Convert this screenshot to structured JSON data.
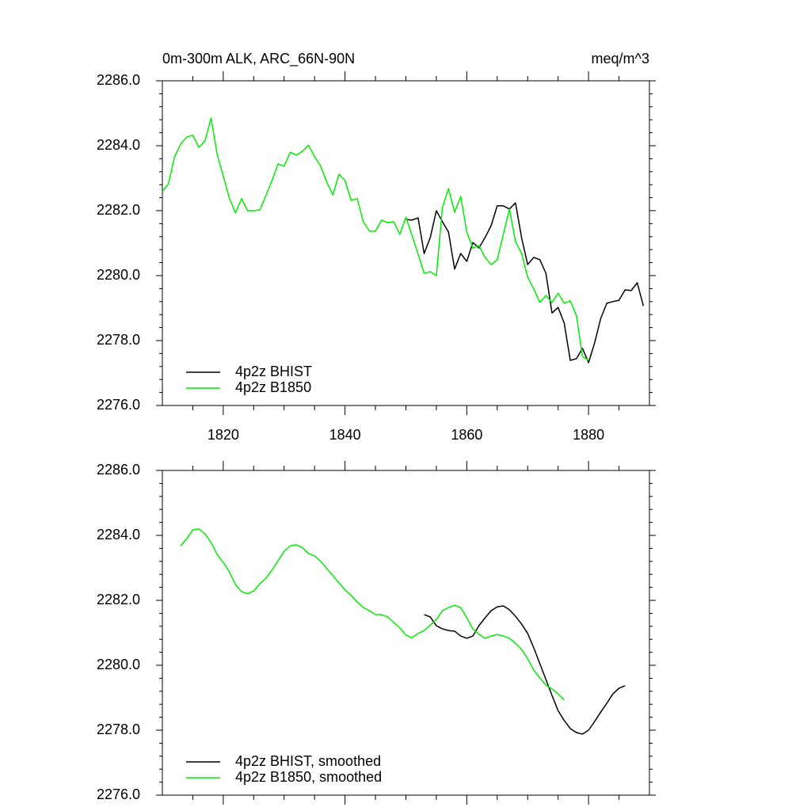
{
  "chart_data": [
    {
      "type": "line",
      "title": "0m-300m ALK, ARC_66N-90N",
      "units_label": "meq/m^3",
      "x": [
        1810,
        1811,
        1812,
        1813,
        1814,
        1815,
        1816,
        1817,
        1818,
        1819,
        1820,
        1821,
        1822,
        1823,
        1824,
        1825,
        1826,
        1827,
        1828,
        1829,
        1830,
        1831,
        1832,
        1833,
        1834,
        1835,
        1836,
        1837,
        1838,
        1839,
        1840,
        1841,
        1842,
        1843,
        1844,
        1845,
        1846,
        1847,
        1848,
        1849,
        1850,
        1851,
        1852,
        1853,
        1854,
        1855,
        1856,
        1857,
        1858,
        1859,
        1860,
        1861,
        1862,
        1863,
        1864,
        1865,
        1866,
        1867,
        1868,
        1869,
        1870,
        1871,
        1872,
        1873,
        1874,
        1875,
        1876,
        1877,
        1878,
        1879,
        1880,
        1881,
        1882,
        1883,
        1884,
        1885,
        1886,
        1887,
        1888,
        1889
      ],
      "series": [
        {
          "name": "4p2z BHIST",
          "color": "#000000",
          "values": [
            null,
            null,
            null,
            null,
            null,
            null,
            null,
            null,
            null,
            null,
            null,
            null,
            null,
            null,
            null,
            null,
            null,
            null,
            null,
            null,
            null,
            null,
            null,
            null,
            null,
            null,
            null,
            null,
            null,
            null,
            null,
            null,
            null,
            null,
            null,
            null,
            null,
            null,
            null,
            null,
            2281.73,
            2281.71,
            2281.78,
            2280.68,
            2281.17,
            2282.0,
            2281.66,
            2281.34,
            2280.2,
            2280.68,
            2280.44,
            2281.02,
            2280.85,
            2281.17,
            2281.54,
            2282.15,
            2282.15,
            2282.05,
            2282.24,
            2281.17,
            2280.34,
            2280.56,
            2280.49,
            2280.07,
            2278.85,
            2279.02,
            2278.54,
            2277.39,
            2277.44,
            2277.76,
            2277.32,
            2277.93,
            2278.68,
            2279.15,
            2279.2,
            2279.24,
            2279.56,
            2279.54,
            2279.78,
            2279.07
          ]
        },
        {
          "name": "4p2z B1850",
          "color": "#00ee00",
          "values": [
            2282.59,
            2282.83,
            2283.66,
            2284.05,
            2284.27,
            2284.32,
            2283.95,
            2284.15,
            2284.85,
            2283.73,
            2283.07,
            2282.39,
            2281.93,
            2282.37,
            2282.0,
            2282.0,
            2282.02,
            2282.46,
            2282.93,
            2283.44,
            2283.37,
            2283.8,
            2283.71,
            2283.83,
            2284.02,
            2283.66,
            2283.37,
            2282.88,
            2282.49,
            2283.12,
            2282.93,
            2282.32,
            2282.37,
            2281.66,
            2281.37,
            2281.37,
            2281.71,
            2281.63,
            2281.66,
            2281.27,
            2281.8,
            2281.24,
            2280.66,
            2280.07,
            2280.12,
            2280.0,
            2282.1,
            2282.68,
            2281.95,
            2282.44,
            2281.34,
            2280.85,
            2280.93,
            2280.56,
            2280.34,
            2280.49,
            2281.27,
            2282.05,
            2281.05,
            2280.68,
            2279.95,
            2279.59,
            2279.17,
            2279.39,
            2279.17,
            2279.46,
            2279.15,
            2279.22,
            2278.78,
            2277.51,
            2277.39,
            null,
            null,
            null,
            null,
            null,
            null,
            null,
            null,
            null
          ]
        }
      ],
      "xlim": [
        1810,
        1890
      ],
      "xticks": [
        1820,
        1840,
        1860,
        1880
      ],
      "show_xtick_labels": true,
      "ylim": [
        2276,
        2286
      ],
      "yticks": [
        {
          "value": 2276,
          "label": "2276.0"
        },
        {
          "value": 2278,
          "label": "2278.0"
        },
        {
          "value": 2280,
          "label": "2280.0"
        },
        {
          "value": 2282,
          "label": "2282.0"
        },
        {
          "value": 2284,
          "label": "2284.0"
        },
        {
          "value": 2286,
          "label": "2286.0"
        }
      ],
      "legend": "lower left"
    },
    {
      "type": "line",
      "x": [
        1810,
        1811,
        1812,
        1813,
        1814,
        1815,
        1816,
        1817,
        1818,
        1819,
        1820,
        1821,
        1822,
        1823,
        1824,
        1825,
        1826,
        1827,
        1828,
        1829,
        1830,
        1831,
        1832,
        1833,
        1834,
        1835,
        1836,
        1837,
        1838,
        1839,
        1840,
        1841,
        1842,
        1843,
        1844,
        1845,
        1846,
        1847,
        1848,
        1849,
        1850,
        1851,
        1852,
        1853,
        1854,
        1855,
        1856,
        1857,
        1858,
        1859,
        1860,
        1861,
        1862,
        1863,
        1864,
        1865,
        1866,
        1867,
        1868,
        1869,
        1870,
        1871,
        1872,
        1873,
        1874,
        1875,
        1876,
        1877,
        1878,
        1879,
        1880,
        1881,
        1882,
        1883,
        1884,
        1885,
        1886,
        1887,
        1888,
        1889
      ],
      "series": [
        {
          "name": "4p2z BHIST, smoothed",
          "color": "#000000",
          "values": [
            null,
            null,
            null,
            null,
            null,
            null,
            null,
            null,
            null,
            null,
            null,
            null,
            null,
            null,
            null,
            null,
            null,
            null,
            null,
            null,
            null,
            null,
            null,
            null,
            null,
            null,
            null,
            null,
            null,
            null,
            null,
            null,
            null,
            null,
            null,
            null,
            null,
            null,
            null,
            null,
            null,
            null,
            null,
            2281.56,
            2281.49,
            2281.22,
            2281.12,
            2281.07,
            2281.05,
            2280.9,
            2280.83,
            2280.9,
            2281.22,
            2281.46,
            2281.68,
            2281.8,
            2281.83,
            2281.71,
            2281.51,
            2281.27,
            2280.98,
            2280.54,
            2280.05,
            2279.56,
            2279.07,
            2278.6,
            2278.3,
            2278.05,
            2277.93,
            2277.88,
            2278.0,
            2278.27,
            2278.56,
            2278.83,
            2279.12,
            2279.29,
            2279.37,
            null,
            null,
            null
          ]
        },
        {
          "name": "4p2z B1850, smoothed",
          "color": "#00ee00",
          "values": [
            null,
            null,
            null,
            2283.68,
            2283.9,
            2284.17,
            2284.2,
            2284.05,
            2283.78,
            2283.41,
            2283.17,
            2282.88,
            2282.49,
            2282.27,
            2282.2,
            2282.29,
            2282.51,
            2282.68,
            2282.93,
            2283.22,
            2283.51,
            2283.68,
            2283.71,
            2283.63,
            2283.44,
            2283.37,
            2283.2,
            2282.98,
            2282.76,
            2282.54,
            2282.32,
            2282.15,
            2281.95,
            2281.78,
            2281.68,
            2281.56,
            2281.56,
            2281.49,
            2281.32,
            2281.15,
            2280.93,
            2280.85,
            2280.98,
            2281.07,
            2281.24,
            2281.41,
            2281.68,
            2281.78,
            2281.85,
            2281.78,
            2281.46,
            2281.12,
            2280.95,
            2280.83,
            2280.9,
            2280.95,
            2280.9,
            2280.83,
            2280.68,
            2280.49,
            2280.2,
            2279.85,
            2279.61,
            2279.39,
            2279.27,
            2279.12,
            2278.93,
            null,
            null,
            null,
            null,
            null,
            null,
            null,
            null,
            null,
            null,
            null,
            null,
            null
          ]
        }
      ],
      "xlim": [
        1810,
        1890
      ],
      "xticks": [
        1820,
        1840,
        1860,
        1880
      ],
      "show_xtick_labels": false,
      "ylim": [
        2276,
        2286
      ],
      "yticks": [
        {
          "value": 2276,
          "label": "2276.0"
        },
        {
          "value": 2278,
          "label": "2278.0"
        },
        {
          "value": 2280,
          "label": "2280.0"
        },
        {
          "value": 2282,
          "label": "2282.0"
        },
        {
          "value": 2284,
          "label": "2284.0"
        },
        {
          "value": 2286,
          "label": "2286.0"
        }
      ],
      "legend": "lower left"
    }
  ]
}
